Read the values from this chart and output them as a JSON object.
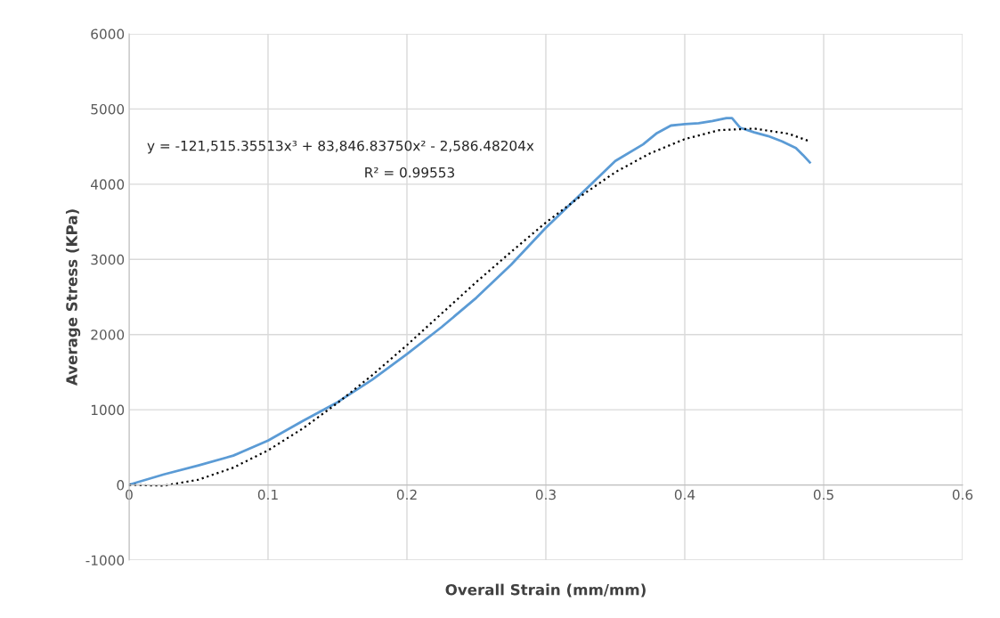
{
  "chart_data": {
    "type": "line",
    "xlabel": "Overall Strain (mm/mm)",
    "ylabel": "Average Stress (KPa)",
    "xlim": [
      0,
      0.6
    ],
    "xticks": [
      0,
      0.1,
      0.2,
      0.3,
      0.4,
      0.5,
      0.6
    ],
    "ylim": [
      -1000,
      6000
    ],
    "yticks": [
      -1000,
      0,
      1000,
      2000,
      3000,
      4000,
      5000,
      6000
    ],
    "grid": true,
    "marker": "none",
    "annotations": [
      "y = -121,515.35513x³ + 83,846.83750x² - 2,586.48204x",
      "R² = 0.99553"
    ],
    "series": [
      {
        "color": "#5b9bd5",
        "line_style": "solid",
        "x": [
          0,
          0.005,
          0.025,
          0.05,
          0.075,
          0.1,
          0.125,
          0.15,
          0.175,
          0.2,
          0.225,
          0.25,
          0.275,
          0.3,
          0.35,
          0.37,
          0.38,
          0.39,
          0.4,
          0.41,
          0.42,
          0.43,
          0.434,
          0.44,
          0.45,
          0.46,
          0.47,
          0.48,
          0.485,
          0.49
        ],
        "values": [
          0,
          30,
          140,
          260,
          390,
          590,
          850,
          1100,
          1400,
          1740,
          2100,
          2490,
          2930,
          3420,
          4310,
          4530,
          4680,
          4780,
          4800,
          4810,
          4840,
          4880,
          4880,
          4750,
          4690,
          4640,
          4570,
          4480,
          4390,
          4290
        ]
      },
      {
        "color": "#000000",
        "line_style": "dotted",
        "x": [
          0,
          0.025,
          0.05,
          0.075,
          0.1,
          0.125,
          0.15,
          0.175,
          0.2,
          0.225,
          0.25,
          0.275,
          0.3,
          0.325,
          0.35,
          0.375,
          0.4,
          0.425,
          0.45,
          0.475,
          0.49
        ],
        "values": [
          0,
          -10,
          70,
          230,
          460,
          750,
          1090,
          1460,
          1860,
          2280,
          2700,
          3100,
          3490,
          3840,
          4160,
          4410,
          4600,
          4720,
          4740,
          4670,
          4570
        ]
      }
    ]
  }
}
